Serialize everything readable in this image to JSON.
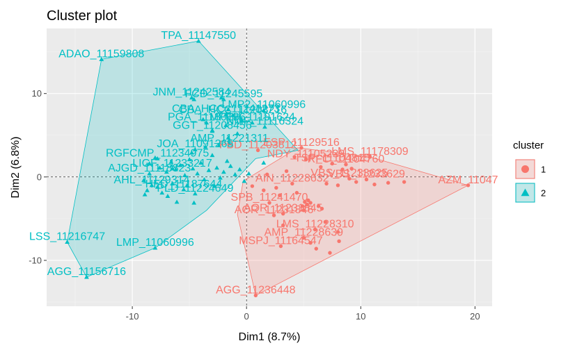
{
  "chart_data": {
    "type": "scatter",
    "title": "Cluster plot",
    "xlabel": "Dim1 (8.7%)",
    "ylabel": "Dim2 (6.8%)",
    "xlim": [
      -17.5,
      21.5
    ],
    "ylim": [
      -15.5,
      17.8
    ],
    "x_ticks": [
      -10,
      0,
      10,
      20
    ],
    "x_tick_labels": [
      "-10",
      "0",
      "10",
      "20"
    ],
    "y_ticks": [
      -10,
      0,
      10
    ],
    "y_tick_labels": [
      "-10",
      "0",
      "10"
    ],
    "grid": true,
    "legend": {
      "title": "cluster",
      "placement": "right",
      "entries": [
        {
          "label": "1",
          "color": "#F8766D",
          "shape": "circle"
        },
        {
          "label": "2",
          "color": "#00BFC4",
          "shape": "triangle"
        }
      ]
    },
    "series": [
      {
        "name": "1",
        "color": "#F8766D",
        "hull": [
          [
            0.8,
            -14.2
          ],
          [
            19.4,
            -1.0
          ],
          [
            10.8,
            2.4
          ],
          [
            4.5,
            3.5
          ],
          [
            -0.3,
            -0.5
          ],
          [
            -0.8,
            -4.5
          ]
        ],
        "labeled_points": [
          {
            "x": 0.8,
            "y": -14.2,
            "label": "AGG_11236448"
          },
          {
            "x": 3.0,
            "y": -8.3,
            "label": "MSPJ_11164547"
          },
          {
            "x": 5.0,
            "y": -7.3,
            "label": "AMP_11228639"
          },
          {
            "x": 6.0,
            "y": -6.3,
            "label": "LMS_11228310"
          },
          {
            "x": 2.4,
            "y": -4.6,
            "label": "AOR_11231846"
          },
          {
            "x": 3.2,
            "y": -4.4,
            "label": "AOR_11231845"
          },
          {
            "x": 2.0,
            "y": -3.1,
            "label": "SPB_11241470"
          },
          {
            "x": 4.0,
            "y": -0.8,
            "label": "AIN_11228632"
          },
          {
            "x": 9.0,
            "y": -0.2,
            "label": "VBS_11233625"
          },
          {
            "x": 10.5,
            "y": -0.3,
            "label": "VBS_11233629"
          },
          {
            "x": 19.4,
            "y": -1.0,
            "label": "AZM_11047"
          },
          {
            "x": 8.7,
            "y": 1.5,
            "label": "RFC_11104760"
          },
          {
            "x": 7.5,
            "y": 1.6,
            "label": "TSP_11104815"
          },
          {
            "x": 10.8,
            "y": 2.4,
            "label": "LMS_11178309"
          },
          {
            "x": 4.8,
            "y": 3.5,
            "label": "ESP_11129516"
          },
          {
            "x": 5.2,
            "y": 2.1,
            "label": "NDY_11105239"
          },
          {
            "x": 1.0,
            "y": 3.2,
            "label": "PBD_11203812"
          }
        ],
        "points": [
          [
            5.1,
            -3.0
          ],
          [
            5.3,
            -3.3
          ],
          [
            5.4,
            -2.8
          ],
          [
            4.9,
            -3.5
          ],
          [
            5.6,
            -3.1
          ],
          [
            5.0,
            -4.0
          ],
          [
            6.3,
            -3.5
          ],
          [
            6.6,
            -3.8
          ],
          [
            3.2,
            -5.8
          ],
          [
            5.6,
            -7.9
          ],
          [
            6.1,
            -8.6
          ],
          [
            7.3,
            -9.1
          ],
          [
            8.1,
            -7.7
          ],
          [
            8.0,
            -6.6
          ],
          [
            6.9,
            -5.4
          ],
          [
            7.0,
            -0.8
          ],
          [
            8.0,
            -1.0
          ],
          [
            9.6,
            -0.6
          ],
          [
            11.2,
            -0.9
          ],
          [
            12.4,
            -0.7
          ],
          [
            13.8,
            -0.6
          ],
          [
            9.2,
            1.0
          ],
          [
            8.4,
            0.9
          ],
          [
            6.5,
            1.2
          ],
          [
            3.5,
            0.7
          ],
          [
            2.6,
            -1.3
          ],
          [
            1.5,
            -1.6
          ],
          [
            0.5,
            -1.1
          ],
          [
            4.2,
            2.4
          ],
          [
            1.8,
            0.3
          ],
          [
            2.9,
            -2.2
          ],
          [
            4.4,
            -1.9
          ]
        ]
      },
      {
        "name": "2",
        "color": "#00BFC4",
        "hull": [
          [
            -14.0,
            -12.0
          ],
          [
            -15.7,
            -7.8
          ],
          [
            -12.7,
            14.1
          ],
          [
            -4.2,
            16.3
          ],
          [
            4.5,
            3.2
          ],
          [
            0.8,
            2.2
          ],
          [
            -3.5,
            -4.0
          ],
          [
            -8.0,
            -8.5
          ]
        ],
        "labeled_points": [
          {
            "x": -14.0,
            "y": -12.0,
            "label": "AGG_11156716"
          },
          {
            "x": -15.7,
            "y": -7.8,
            "label": "LSS_11216747"
          },
          {
            "x": -8.0,
            "y": -8.5,
            "label": "LMP_11060996"
          },
          {
            "x": -12.7,
            "y": 14.1,
            "label": "ADAO_11159808"
          },
          {
            "x": -4.2,
            "y": 16.3,
            "label": "TPA_11147550"
          },
          {
            "x": -4.8,
            "y": 9.5,
            "label": "JNM_11242584"
          },
          {
            "x": -2.0,
            "y": 9.3,
            "label": "FCD_11245595"
          },
          {
            "x": 1.5,
            "y": 8.0,
            "label": "LMP2_11060996"
          },
          {
            "x": -1.8,
            "y": 7.5,
            "label": "CBA_HCC_11241273"
          },
          {
            "x": -1.2,
            "y": 7.4,
            "label": "CBA_HCC_11203216"
          },
          {
            "x": 0.5,
            "y": 6.5,
            "label": "MFEH_11191624"
          },
          {
            "x": 1.6,
            "y": 6.0,
            "label": "NMF_11116324"
          },
          {
            "x": -3.5,
            "y": 6.5,
            "label": "PGA_11180136"
          },
          {
            "x": -3.0,
            "y": 5.5,
            "label": "GGT_11208456"
          },
          {
            "x": -4.5,
            "y": 3.3,
            "label": "JOA_11091265"
          },
          {
            "x": -1.5,
            "y": 4.0,
            "label": "AMP_11221311"
          },
          {
            "x": -7.8,
            "y": 2.2,
            "label": "RGFCMP_11234975"
          },
          {
            "x": -6.5,
            "y": 1.0,
            "label": "LIGF_11233217"
          },
          {
            "x": -8.5,
            "y": 0.4,
            "label": "AJGD_11118823"
          },
          {
            "x": -8.3,
            "y": -1.0,
            "label": "AHL_11129314"
          },
          {
            "x": -5.5,
            "y": -1.5,
            "label": "HFD_11187644"
          },
          {
            "x": -4.5,
            "y": -2.0,
            "label": "PLD_11224649"
          }
        ],
        "points": [
          [
            -8.5,
            1.6
          ],
          [
            -8.0,
            2.3
          ],
          [
            -7.6,
            1.1
          ],
          [
            -7.0,
            0.6
          ],
          [
            -6.6,
            1.8
          ],
          [
            -6.2,
            0.9
          ],
          [
            -5.8,
            1.4
          ],
          [
            -5.4,
            0.2
          ],
          [
            -5.0,
            2.1
          ],
          [
            -4.7,
            1.0
          ],
          [
            -4.3,
            0.4
          ],
          [
            -4.0,
            1.7
          ],
          [
            -3.7,
            -0.3
          ],
          [
            -3.3,
            0.8
          ],
          [
            -3.0,
            2.6
          ],
          [
            -2.6,
            1.1
          ],
          [
            -2.3,
            -0.1
          ],
          [
            -2.0,
            0.6
          ],
          [
            -1.7,
            1.9
          ],
          [
            -1.4,
            1.3
          ],
          [
            -1.0,
            0.3
          ],
          [
            -0.6,
            0.9
          ],
          [
            -0.2,
            -0.5
          ],
          [
            0.2,
            0.4
          ],
          [
            -9.0,
            -0.4
          ],
          [
            -8.7,
            -1.6
          ],
          [
            -8.9,
            -2.1
          ],
          [
            -7.8,
            -1.2
          ],
          [
            -6.9,
            -2.3
          ],
          [
            -6.5,
            -0.8
          ],
          [
            -5.2,
            -1.0
          ],
          [
            -4.8,
            2.9
          ],
          [
            -3.6,
            3.6
          ],
          [
            -2.4,
            3.8
          ],
          [
            -1.6,
            4.7
          ],
          [
            -0.8,
            5.2
          ],
          [
            -3.0,
            5.6
          ],
          [
            -1.8,
            6.2
          ],
          [
            -0.4,
            6.8
          ],
          [
            -4.6,
            9.3
          ],
          [
            -1.6,
            8.1
          ],
          [
            -2.2,
            9.5
          ],
          [
            -3.8,
            6.9
          ],
          [
            1.5,
            1.7
          ],
          [
            -4.6,
            -3.1
          ],
          [
            -6.1,
            -3.0
          ],
          [
            -7.4,
            -1.9
          ],
          [
            -2.8,
            -1.1
          ]
        ]
      }
    ]
  }
}
